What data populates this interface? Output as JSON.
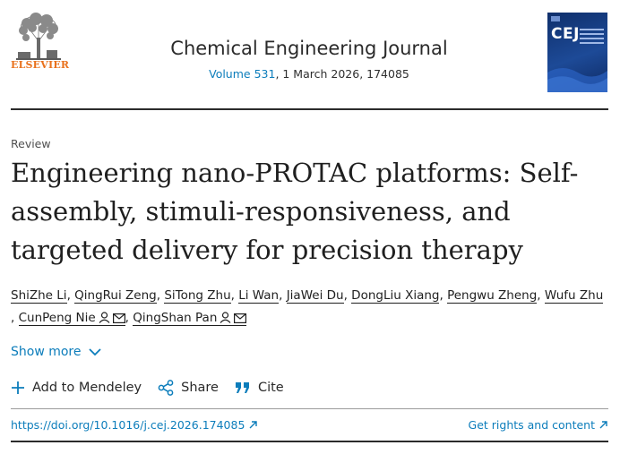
{
  "header": {
    "publisher_name": "ELSEVIER",
    "journal_title": "Chemical Engineering Journal",
    "volume": "Volume 531",
    "issue_rest": ", 1 March 2026, 174085",
    "cover_letters": "CEJ"
  },
  "article": {
    "type": "Review",
    "title": "Engineering nano-PROTAC platforms: Self-assembly, stimuli-responsiveness, and targeted delivery for precision therapy"
  },
  "authors": [
    "ShiZhe Li",
    "QingRui Zeng",
    "SiTong Zhu",
    "Li Wan",
    "JiaWei Du",
    "DongLiu Xiang",
    "Pengwu Zheng",
    "Wufu Zhu",
    "CunPeng Nie",
    "QingShan Pan"
  ],
  "separator": ",",
  "show_more": "Show more",
  "actions": {
    "add_to_mendeley": "Add to Mendeley",
    "share": "Share",
    "cite": "Cite"
  },
  "links": {
    "doi": "https://doi.org/10.1016/j.cej.2026.174085",
    "rights": "Get rights and content"
  },
  "colors": {
    "link": "#0c7dbb",
    "publisher": "#e9711c",
    "cover": "#1d4a97"
  },
  "icons": {
    "external": "arrow-up-right-icon",
    "person": "person-icon",
    "mail": "mail-icon"
  }
}
